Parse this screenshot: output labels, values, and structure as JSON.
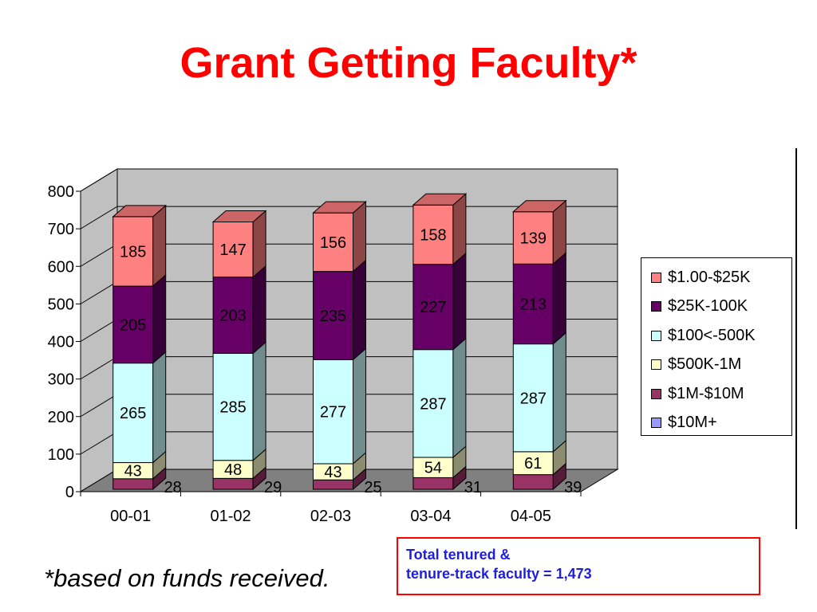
{
  "slide": {
    "title": "Grant Getting Faculty*",
    "footnote": "*based on funds received.",
    "total_line1": "Total tenured &",
    "total_line2": "tenure-track faculty = 1,473"
  },
  "colors": {
    "title": "#ff0000",
    "total_text": "#1f1fd6",
    "total_border": "#ff0000",
    "plot_back": "#c0c0c0",
    "plot_floor": "#808080"
  },
  "chart_data": {
    "type": "bar",
    "stacked": true,
    "three_d": true,
    "categories": [
      "00-01",
      "01-02",
      "02-03",
      "03-04",
      "04-05"
    ],
    "ylim": [
      0,
      800
    ],
    "yticks": [
      "0",
      "100",
      "200",
      "300",
      "400",
      "500",
      "600",
      "700",
      "800"
    ],
    "grid": true,
    "legend_position": "right",
    "series": [
      {
        "name": "$10M+",
        "color": "#9999ff",
        "values": [
          0,
          0,
          0,
          0,
          0
        ]
      },
      {
        "name": "$1M-$10M",
        "color": "#993366",
        "values": [
          28,
          29,
          25,
          31,
          39
        ]
      },
      {
        "name": "$500K-1M",
        "color": "#ffffcc",
        "values": [
          43,
          48,
          43,
          54,
          61
        ]
      },
      {
        "name": "$100<-500K",
        "color": "#ccffff",
        "values": [
          265,
          285,
          277,
          287,
          287
        ]
      },
      {
        "name": "$25K-100K",
        "color": "#660066",
        "values": [
          205,
          203,
          235,
          227,
          213
        ]
      },
      {
        "name": "$1.00-$25K",
        "color": "#ff8080",
        "values": [
          185,
          147,
          156,
          158,
          139
        ]
      }
    ]
  }
}
